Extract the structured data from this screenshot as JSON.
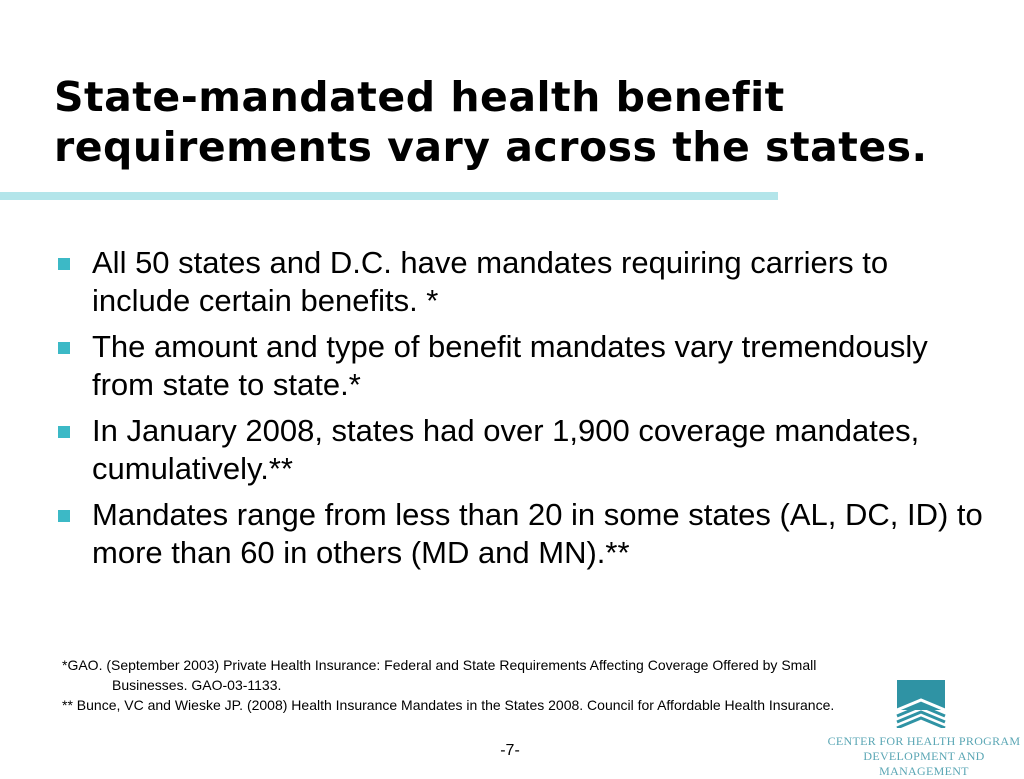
{
  "slide": {
    "title_line1": "State-mandated health benefit",
    "title_line2": "requirements vary across the states.",
    "accent_color": "#3cb9c6",
    "rule_color": "#b3e5ea"
  },
  "bullets": [
    {
      "text": "All 50 states and D.C. have mandates requiring carriers to include certain benefits. *"
    },
    {
      "text": "The amount and type of benefit mandates vary tremendously from state to state.*"
    },
    {
      "text": "In January 2008, states had over 1,900 coverage mandates, cumulatively.**"
    },
    {
      "text": "Mandates range from less than 20 in some states (AL, DC, ID) to more than 60 in others (MD and MN).**"
    }
  ],
  "footnotes": [
    {
      "text": "*GAO. (September 2003) Private Health Insurance: Federal and State Requirements Affecting Coverage Offered by Small Businesses. GAO-03-1133."
    },
    {
      "text": "** Bunce, VC and Wieske JP. (2008) Health Insurance Mandates in the States 2008. Council for Affordable Health Insurance."
    }
  ],
  "page_number": "-7-",
  "logo": {
    "line1": "CENTER FOR HEALTH PROGRAM",
    "line2": "DEVELOPMENT AND MANAGEMENT",
    "color": "#5aa6b4"
  }
}
